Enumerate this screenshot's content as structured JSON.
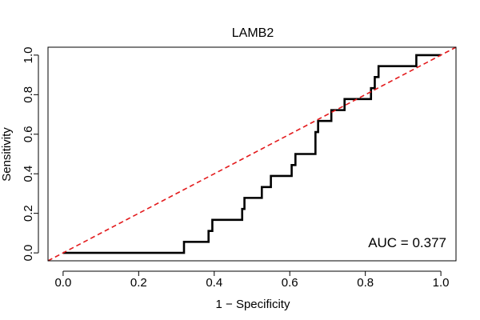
{
  "chart_data": {
    "type": "line",
    "title": "LAMB2",
    "xlabel": "1 − Specificity",
    "ylabel": "Sensitivity",
    "xlim": [
      -0.04,
      1.04
    ],
    "ylim": [
      -0.04,
      1.04
    ],
    "x_ticks": [
      0.0,
      0.2,
      0.4,
      0.6,
      0.8,
      1.0
    ],
    "y_ticks": [
      0.0,
      0.2,
      0.4,
      0.6,
      0.8,
      1.0
    ],
    "x_tick_labels": [
      "0.0",
      "0.2",
      "0.4",
      "0.6",
      "0.8",
      "1.0"
    ],
    "y_tick_labels": [
      "0.0",
      "0.2",
      "0.4",
      "0.6",
      "0.8",
      "1.0"
    ],
    "annotation": "AUC = 0.377",
    "series": [
      {
        "name": "ROC curve",
        "color": "#000000",
        "style": "solid",
        "x": [
          0.0,
          0.32,
          0.32,
          0.385,
          0.385,
          0.395,
          0.395,
          0.474,
          0.474,
          0.48,
          0.48,
          0.526,
          0.526,
          0.55,
          0.55,
          0.605,
          0.605,
          0.615,
          0.615,
          0.668,
          0.668,
          0.675,
          0.675,
          0.71,
          0.71,
          0.745,
          0.745,
          0.815,
          0.815,
          0.825,
          0.825,
          0.835,
          0.835,
          0.935,
          0.935,
          1.0
        ],
        "y": [
          0.0,
          0.0,
          0.056,
          0.056,
          0.111,
          0.111,
          0.167,
          0.167,
          0.222,
          0.222,
          0.278,
          0.278,
          0.333,
          0.333,
          0.389,
          0.389,
          0.444,
          0.444,
          0.5,
          0.5,
          0.611,
          0.611,
          0.667,
          0.667,
          0.722,
          0.722,
          0.778,
          0.778,
          0.833,
          0.833,
          0.889,
          0.889,
          0.944,
          0.944,
          1.0,
          1.0
        ]
      },
      {
        "name": "Reference diagonal",
        "color": "#e31a1c",
        "style": "dashed",
        "x": [
          -0.04,
          1.04
        ],
        "y": [
          -0.04,
          1.04
        ]
      }
    ]
  }
}
